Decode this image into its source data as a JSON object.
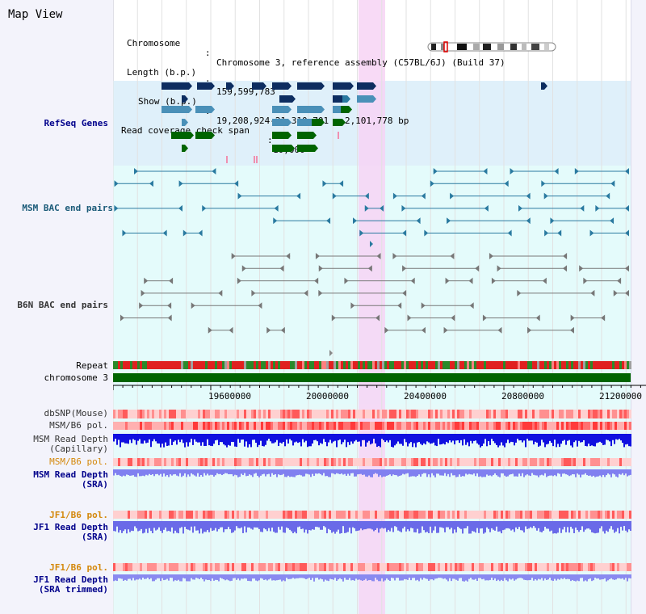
{
  "title": "Map View",
  "info": {
    "chromosome_key": "Chromosome",
    "chromosome_value": "Chromosome 3, reference assembly (C57BL/6J) (Build 37)",
    "length_key": "Length (b.p.)",
    "length_value": "159,599,783",
    "show_key": "Show (b.p.)",
    "show_value": "19,208,924-21,310,701 : 2,101,778 bp",
    "coverage_key": "Read coverage check span",
    "coverage_value": "10,000"
  },
  "tracks": {
    "refseq_genes": "RefSeq Genes",
    "msm_bac": "MSM BAC end pairs",
    "b6n_bac": "B6N BAC end pairs",
    "repeat": "Repeat",
    "chromosome": "chromosome 3",
    "dbsnp": "dbSNP(Mouse)",
    "msm_b6_pol_1": "MSM/B6 pol.",
    "msm_read_depth_cap_1": "MSM Read Depth",
    "msm_read_depth_cap_2": "(Capillary)",
    "msm_b6_pol_2": "MSM/B6 pol.",
    "msm_read_depth_sra_1": "MSM Read Depth",
    "msm_read_depth_sra_2": "(SRA)",
    "jf1_b6_pol_1": "JF1/B6 pol.",
    "jf1_read_depth_sra_1": "JF1 Read Depth",
    "jf1_read_depth_sra_2": "(SRA)",
    "jf1_b6_pol_2": "JF1/B6 pol.",
    "jf1_read_depth_trim_1": "JF1 Read Depth",
    "jf1_read_depth_trim_2": "(SRA trimmed)"
  },
  "axis": {
    "ticks": [
      "19600000",
      "20000000",
      "20400000",
      "20800000",
      "21200000"
    ]
  },
  "colors": {
    "highlight": "#f7d4f4",
    "refseq_bg": "#dff0fa",
    "teal": "#2a7aa0",
    "navy": "#0d2d60",
    "green": "#006400",
    "read_depth_blue": "#2020e0",
    "pol_red": "#f04040"
  },
  "icons": {
    "chromosome_ideogram": "chromosome-ideogram"
  }
}
